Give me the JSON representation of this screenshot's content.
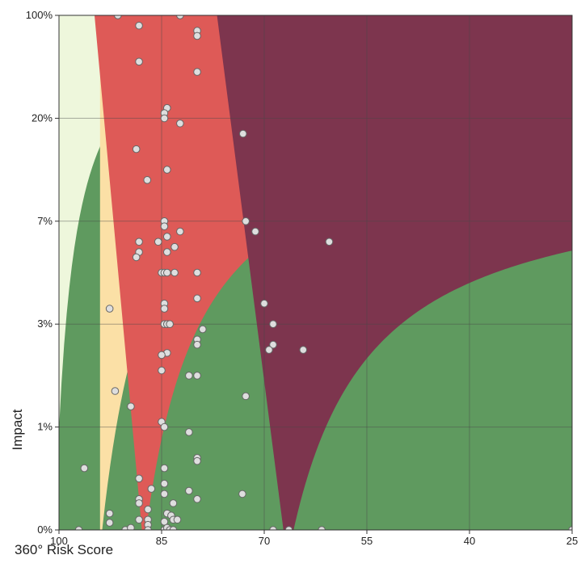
{
  "chart_data": {
    "type": "scatter",
    "title": "",
    "xlabel": "360° Risk Score",
    "ylabel": "Impact",
    "x_axis": {
      "reversed": true,
      "range": [
        100,
        25
      ],
      "ticks": [
        100,
        85,
        70,
        55,
        40,
        25
      ],
      "tick_labels": [
        "100",
        "85",
        "70",
        "55",
        "40",
        "25"
      ]
    },
    "y_axis": {
      "scale": "categorical-bands",
      "ticks": [
        "0%",
        "1%",
        "3%",
        "7%",
        "20%",
        "100%"
      ],
      "tick_labels": [
        "0%",
        "1%",
        "3%",
        "7%",
        "20%",
        "100%"
      ]
    },
    "grid": true,
    "legend": "none",
    "zone_colors": [
      "#5f9a5f",
      "#eef7dc",
      "#fbe0a6",
      "#de5a57",
      "#7d354e"
    ],
    "point_color": "#dedede",
    "point_stroke": "#666666",
    "points_note": "y values expressed as position on band axis: 0 = 0%, 1 = 1%, 2 = 3%, 3 = 7%, 4 = 20%, 5 = 100%",
    "points": [
      {
        "x": 91.4,
        "y": 5.0
      },
      {
        "x": 82.3,
        "y": 5.0
      },
      {
        "x": 88.3,
        "y": 4.9
      },
      {
        "x": 79.8,
        "y": 4.85
      },
      {
        "x": 79.8,
        "y": 4.8
      },
      {
        "x": 88.3,
        "y": 4.55
      },
      {
        "x": 79.8,
        "y": 4.45
      },
      {
        "x": 84.2,
        "y": 4.1
      },
      {
        "x": 84.6,
        "y": 4.05
      },
      {
        "x": 84.6,
        "y": 4.0
      },
      {
        "x": 82.3,
        "y": 3.95
      },
      {
        "x": 73.1,
        "y": 3.85
      },
      {
        "x": 88.7,
        "y": 3.7
      },
      {
        "x": 84.2,
        "y": 3.5
      },
      {
        "x": 87.1,
        "y": 3.4
      },
      {
        "x": 84.6,
        "y": 3.0
      },
      {
        "x": 84.6,
        "y": 2.95
      },
      {
        "x": 82.3,
        "y": 2.9
      },
      {
        "x": 84.2,
        "y": 2.85
      },
      {
        "x": 83.1,
        "y": 2.75
      },
      {
        "x": 71.3,
        "y": 2.9
      },
      {
        "x": 72.7,
        "y": 3.0
      },
      {
        "x": 60.5,
        "y": 2.8
      },
      {
        "x": 88.3,
        "y": 2.8
      },
      {
        "x": 88.3,
        "y": 2.7
      },
      {
        "x": 85.5,
        "y": 2.8
      },
      {
        "x": 88.7,
        "y": 2.65
      },
      {
        "x": 84.2,
        "y": 2.7
      },
      {
        "x": 85.0,
        "y": 2.5
      },
      {
        "x": 84.6,
        "y": 2.5
      },
      {
        "x": 84.2,
        "y": 2.5
      },
      {
        "x": 83.1,
        "y": 2.5
      },
      {
        "x": 79.8,
        "y": 2.5
      },
      {
        "x": 79.8,
        "y": 2.25
      },
      {
        "x": 70.0,
        "y": 2.2
      },
      {
        "x": 84.6,
        "y": 2.2
      },
      {
        "x": 84.6,
        "y": 2.15
      },
      {
        "x": 92.6,
        "y": 2.15
      },
      {
        "x": 84.6,
        "y": 2.0
      },
      {
        "x": 84.2,
        "y": 2.0
      },
      {
        "x": 79.0,
        "y": 1.95
      },
      {
        "x": 83.8,
        "y": 2.0
      },
      {
        "x": 68.7,
        "y": 2.0
      },
      {
        "x": 79.8,
        "y": 1.85
      },
      {
        "x": 79.8,
        "y": 1.8
      },
      {
        "x": 68.7,
        "y": 1.8
      },
      {
        "x": 69.3,
        "y": 1.75
      },
      {
        "x": 64.3,
        "y": 1.75
      },
      {
        "x": 84.2,
        "y": 1.72
      },
      {
        "x": 85.0,
        "y": 1.7
      },
      {
        "x": 85.0,
        "y": 1.55
      },
      {
        "x": 81.0,
        "y": 1.5
      },
      {
        "x": 79.8,
        "y": 1.5
      },
      {
        "x": 91.8,
        "y": 1.35
      },
      {
        "x": 72.7,
        "y": 1.3
      },
      {
        "x": 89.5,
        "y": 1.2
      },
      {
        "x": 85.0,
        "y": 1.05
      },
      {
        "x": 84.6,
        "y": 1.0
      },
      {
        "x": 81.0,
        "y": 0.95
      },
      {
        "x": 79.8,
        "y": 0.7
      },
      {
        "x": 79.8,
        "y": 0.67
      },
      {
        "x": 96.3,
        "y": 0.6
      },
      {
        "x": 84.6,
        "y": 0.6
      },
      {
        "x": 88.3,
        "y": 0.5
      },
      {
        "x": 84.6,
        "y": 0.45
      },
      {
        "x": 86.5,
        "y": 0.4
      },
      {
        "x": 84.6,
        "y": 0.35
      },
      {
        "x": 81.0,
        "y": 0.38
      },
      {
        "x": 79.8,
        "y": 0.3
      },
      {
        "x": 73.2,
        "y": 0.35
      },
      {
        "x": 88.3,
        "y": 0.3
      },
      {
        "x": 88.3,
        "y": 0.26
      },
      {
        "x": 83.3,
        "y": 0.26
      },
      {
        "x": 92.6,
        "y": 0.16
      },
      {
        "x": 87.0,
        "y": 0.2
      },
      {
        "x": 84.2,
        "y": 0.16
      },
      {
        "x": 92.6,
        "y": 0.07
      },
      {
        "x": 88.3,
        "y": 0.1
      },
      {
        "x": 87.0,
        "y": 0.1
      },
      {
        "x": 87.0,
        "y": 0.05
      },
      {
        "x": 84.6,
        "y": 0.08
      },
      {
        "x": 83.6,
        "y": 0.14
      },
      {
        "x": 83.3,
        "y": 0.1
      },
      {
        "x": 82.7,
        "y": 0.1
      },
      {
        "x": 97.1,
        "y": 0.0
      },
      {
        "x": 90.3,
        "y": 0.0
      },
      {
        "x": 89.5,
        "y": 0.02
      },
      {
        "x": 87.0,
        "y": 0.0
      },
      {
        "x": 84.6,
        "y": 0.0
      },
      {
        "x": 84.2,
        "y": 0.02
      },
      {
        "x": 83.8,
        "y": 0.0
      },
      {
        "x": 83.3,
        "y": 0.0
      },
      {
        "x": 68.7,
        "y": 0.0
      },
      {
        "x": 66.4,
        "y": 0.0
      },
      {
        "x": 61.6,
        "y": 0.0
      },
      {
        "x": 25.0,
        "y": 0.0
      }
    ]
  }
}
